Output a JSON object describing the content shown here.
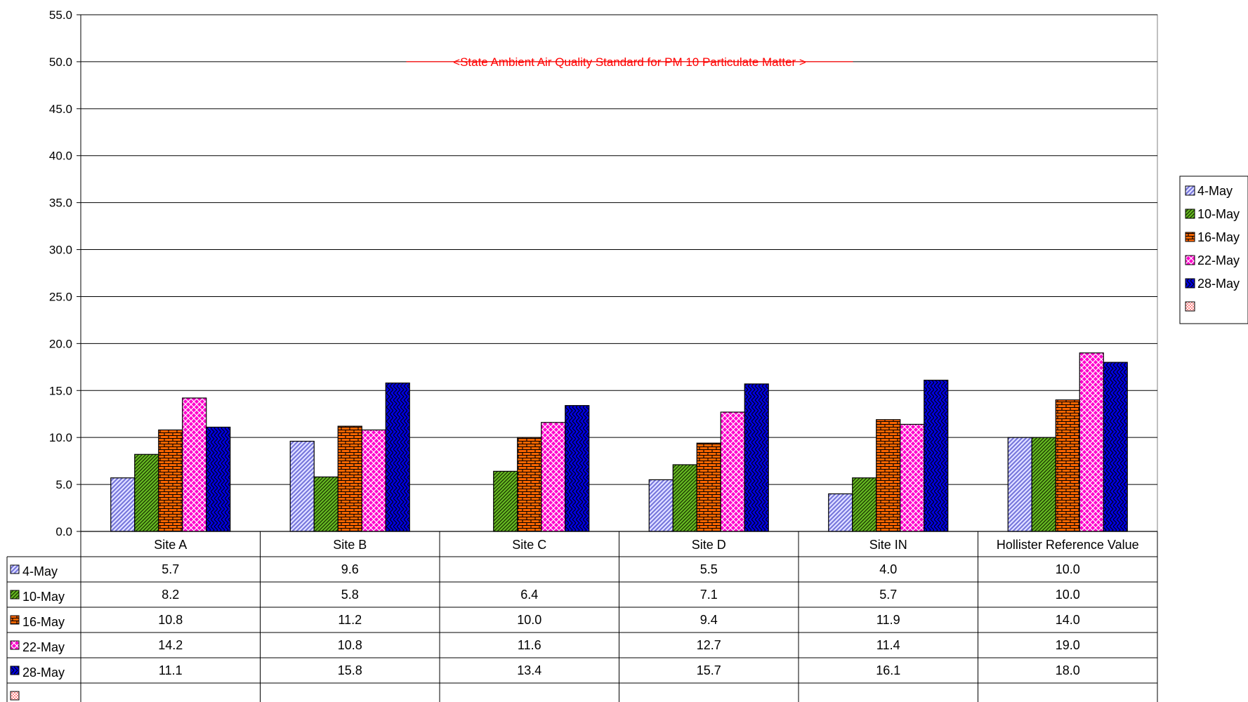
{
  "chart_data": {
    "type": "bar",
    "title": "",
    "xlabel": "",
    "ylabel": "",
    "ylim": [
      0,
      55
    ],
    "yticks": [
      "0.0",
      "5.0",
      "10.0",
      "15.0",
      "20.0",
      "25.0",
      "30.0",
      "35.0",
      "40.0",
      "45.0",
      "50.0",
      "55.0"
    ],
    "grid": true,
    "legend_position": "right",
    "categories": [
      "Site A",
      "Site B",
      "Site C",
      "Site D",
      "Site IN",
      "Hollister Reference Value"
    ],
    "series": [
      {
        "name": "4-May",
        "values": [
          5.7,
          9.6,
          null,
          5.5,
          4.0,
          10.0
        ],
        "labels": [
          "5.7",
          "9.6",
          "",
          "5.5",
          "4.0",
          "10.0"
        ],
        "color": "#9999FF",
        "pattern": "diagonal-hatch"
      },
      {
        "name": "10-May",
        "values": [
          8.2,
          5.8,
          6.4,
          7.1,
          5.7,
          10.0
        ],
        "labels": [
          "8.2",
          "5.8",
          "6.4",
          "7.1",
          "5.7",
          "10.0"
        ],
        "color": "#66BB22",
        "pattern": "dense-diagonal"
      },
      {
        "name": "16-May",
        "values": [
          10.8,
          11.2,
          10.0,
          9.4,
          11.9,
          14.0
        ],
        "labels": [
          "10.8",
          "11.2",
          "10.0",
          "9.4",
          "11.9",
          "14.0"
        ],
        "color": "#FF6600",
        "pattern": "brick"
      },
      {
        "name": "22-May",
        "values": [
          14.2,
          10.8,
          11.6,
          12.7,
          11.4,
          19.0
        ],
        "labels": [
          "14.2",
          "10.8",
          "11.6",
          "12.7",
          "11.4",
          "19.0"
        ],
        "color": "#FF00CC",
        "pattern": "crosshatch"
      },
      {
        "name": "28-May",
        "values": [
          11.1,
          15.8,
          13.4,
          15.7,
          16.1,
          18.0
        ],
        "labels": [
          "11.1",
          "15.8",
          "13.4",
          "15.7",
          "16.1",
          "18.0"
        ],
        "color": "#0000DD",
        "pattern": "wave"
      },
      {
        "name": "",
        "values": [
          null,
          null,
          null,
          null,
          null,
          null
        ],
        "labels": [
          "",
          "",
          "",
          "",
          "",
          ""
        ],
        "color": "#FF8888",
        "pattern": "small-checks"
      }
    ],
    "annotations": [
      {
        "text": "<State Ambient Air Quality Standard for PM 10 Particulate Matter >",
        "y": 50,
        "color": "#FF0000",
        "style": "strikethrough"
      }
    ]
  }
}
